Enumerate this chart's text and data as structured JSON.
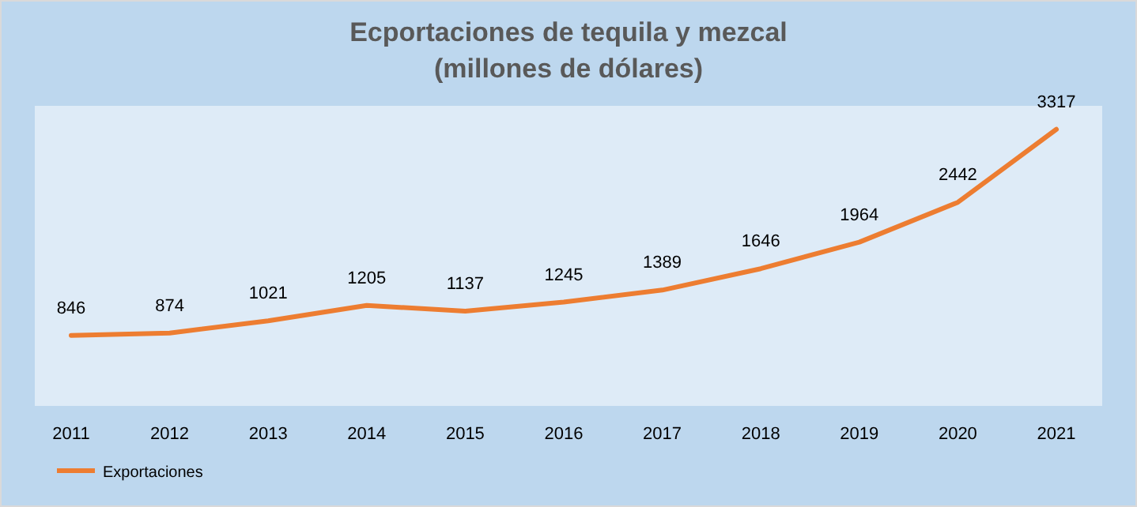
{
  "chart_data": {
    "type": "line",
    "title": "Ecportaciones de tequila y mezcal\n(millones de dólares)",
    "categories": [
      "2011",
      "2012",
      "2013",
      "2014",
      "2015",
      "2016",
      "2017",
      "2018",
      "2019",
      "2020",
      "2021"
    ],
    "series": [
      {
        "name": "Exportaciones",
        "color": "#ed7d31",
        "values": [
          846,
          874,
          1021,
          1205,
          1137,
          1245,
          1389,
          1646,
          1964,
          2442,
          3317
        ]
      }
    ],
    "data_labels": true,
    "legend": "bottom left",
    "marker": "none",
    "line_style": "solid"
  }
}
